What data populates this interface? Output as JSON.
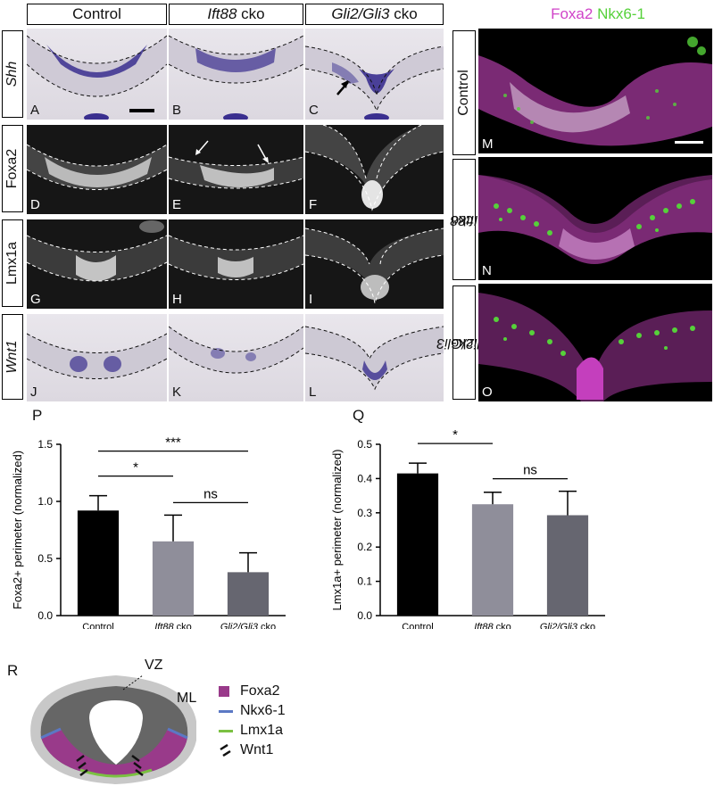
{
  "column_headers": {
    "control": "Control",
    "ift88_italic": "Ift88",
    "ift88_suffix": " cko",
    "gli_italic": "Gli2/Gli3",
    "gli_suffix": " cko"
  },
  "row_labels": {
    "shh": "Shh",
    "foxa2": "Foxa2",
    "lmx1a": "Lmx1a",
    "wnt1": "Wnt1"
  },
  "panel_letters": [
    "A",
    "B",
    "C",
    "D",
    "E",
    "F",
    "G",
    "H",
    "I",
    "J",
    "K",
    "L"
  ],
  "right_panel": {
    "header_foxa2": "Foxa2",
    "header_nkx": "Nkx6-1",
    "foxa2_color": "#d043c8",
    "nkx_color": "#56d13a",
    "row_labels": {
      "control": "Control",
      "ift88_italic": "Ift88",
      "ift88_suffix": " cko",
      "gli_italic": "Gli2/Gli3",
      "gli_suffix": " cko"
    },
    "letters": [
      "M",
      "N",
      "O"
    ]
  },
  "chart_data": [
    {
      "type": "bar",
      "panel_letter": "P",
      "ylabel": "Foxa2+ perimeter (normalized)",
      "categories": [
        "Control",
        "Ift88 cko",
        "Gli2/Gli3 cko"
      ],
      "values": [
        0.92,
        0.65,
        0.38
      ],
      "error": [
        0.13,
        0.23,
        0.17
      ],
      "ylim": [
        0,
        1.5
      ],
      "yticks": [
        "0.0",
        "0.5",
        "1.0",
        "1.5"
      ],
      "colors": [
        "#000000",
        "#8f8e9a",
        "#666670"
      ],
      "significance": [
        {
          "pair": [
            "Control",
            "Ift88 cko"
          ],
          "label": "*"
        },
        {
          "pair": [
            "Control",
            "Gli2/Gli3 cko"
          ],
          "label": "***"
        },
        {
          "pair": [
            "Ift88 cko",
            "Gli2/Gli3 cko"
          ],
          "label": "ns"
        }
      ]
    },
    {
      "type": "bar",
      "panel_letter": "Q",
      "ylabel": "Lmx1a+ perimeter (normalized)",
      "categories": [
        "Control",
        "Ift88 cko",
        "Gli2/Gli3 cko"
      ],
      "values": [
        0.415,
        0.325,
        0.293
      ],
      "error": [
        0.03,
        0.035,
        0.07
      ],
      "ylim": [
        0,
        0.5
      ],
      "yticks": [
        "0.0",
        "0.1",
        "0.2",
        "0.3",
        "0.4",
        "0.5"
      ],
      "colors": [
        "#000000",
        "#8f8e9a",
        "#666670"
      ],
      "significance": [
        {
          "pair": [
            "Control",
            "Ift88 cko"
          ],
          "label": "*"
        },
        {
          "pair": [
            "Control",
            "Gli2/Gli3 cko"
          ],
          "label": "**"
        },
        {
          "pair": [
            "Ift88 cko",
            "Gli2/Gli3 cko"
          ],
          "label": "ns"
        }
      ]
    }
  ],
  "schematic": {
    "letter": "R",
    "vz": "VZ",
    "ml": "ML",
    "legend": [
      {
        "label": "Foxa2",
        "color": "#993a8a"
      },
      {
        "label": "Nkx6-1",
        "color": "#5b78c4"
      },
      {
        "label": "Lmx1a",
        "color": "#7bc142"
      },
      {
        "label": "Wnt1",
        "color": "#111111"
      }
    ]
  }
}
